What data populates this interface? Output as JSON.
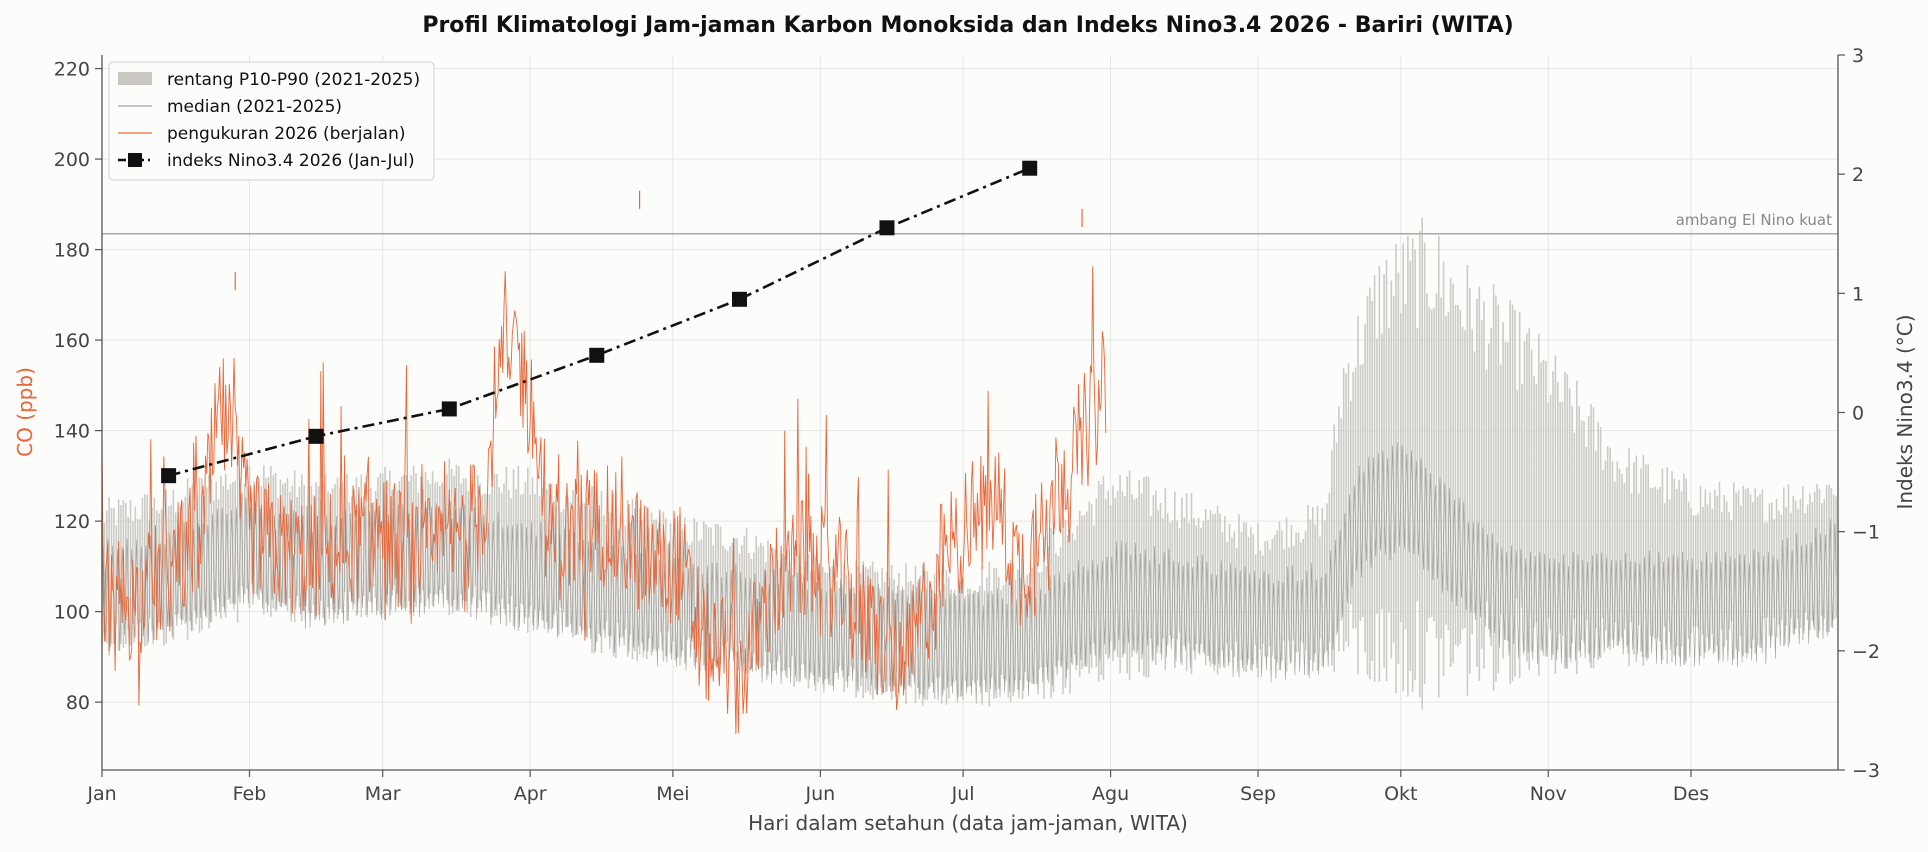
{
  "chart_data": {
    "type": "line",
    "title": "Profil Klimatologi Jam-jaman Karbon Monoksida dan Indeks Nino3.4 2026 - Bariri (WITA)",
    "xlabel": "Hari dalam setahun (data jam-jaman, WITA)",
    "ylabel_left": "CO (ppb)",
    "ylabel_right": "Indeks Nino3.4 (°C)",
    "ylim_left": [
      65,
      223
    ],
    "ylim_right": [
      -3,
      3
    ],
    "left_ticks": [
      80,
      100,
      120,
      140,
      160,
      180,
      200,
      220
    ],
    "right_ticks": [
      -3,
      -2,
      -1,
      0,
      1,
      2,
      3
    ],
    "right_tick_labels": [
      "−3",
      "−2",
      "−1",
      "0",
      "1",
      "2",
      "3"
    ],
    "month_labels": [
      "Jan",
      "Feb",
      "Mar",
      "Apr",
      "Mei",
      "Jun",
      "Jul",
      "Agu",
      "Sep",
      "Okt",
      "Nov",
      "Des"
    ],
    "grid": true,
    "legend_position": "top-left",
    "legend": [
      "rentang P10-P90 (2021-2025)",
      "median (2021-2025)",
      "pengukuran 2026 (berjalan)",
      "indeks Nino3.4 2026 (Jan-Jul)"
    ],
    "threshold": {
      "value": 1.5,
      "axis": "right",
      "label": "ambang El Nino kuat"
    },
    "band_p10_p90": {
      "doy": [
        1,
        15,
        32,
        46,
        60,
        74,
        91,
        105,
        121,
        135,
        152,
        166,
        182,
        196,
        213,
        227,
        244,
        258,
        262,
        270,
        280,
        288,
        300,
        312,
        320,
        335,
        350,
        365
      ],
      "low": [
        90,
        92,
        98,
        97,
        98,
        99,
        95,
        90,
        88,
        86,
        82,
        80,
        78,
        79,
        84,
        86,
        85,
        86,
        85,
        80,
        78,
        80,
        85,
        86,
        87,
        88,
        90,
        92
      ],
      "high": [
        125,
        128,
        135,
        130,
        132,
        134,
        132,
        128,
        122,
        120,
        112,
        111,
        110,
        114,
        133,
        128,
        120,
        125,
        160,
        182,
        188,
        178,
        166,
        150,
        138,
        130,
        128,
        132
      ]
    },
    "median_2021_2025": {
      "doy": [
        1,
        15,
        32,
        46,
        60,
        74,
        91,
        105,
        121,
        135,
        152,
        166,
        182,
        196,
        213,
        227,
        244,
        258,
        265,
        275,
        285,
        295,
        305,
        320,
        335,
        350,
        365
      ],
      "values": [
        103,
        106,
        114,
        108,
        111,
        112,
        108,
        104,
        100,
        98,
        95,
        94,
        92,
        93,
        103,
        101,
        97,
        98,
        120,
        126,
        114,
        104,
        100,
        102,
        100,
        101,
        108
      ]
    },
    "co_2026": {
      "doy": [
        1,
        8,
        15,
        22,
        26,
        32,
        39,
        46,
        53,
        60,
        67,
        74,
        81,
        84,
        88,
        92,
        95,
        105,
        112,
        118,
        122,
        127,
        133,
        135,
        142,
        149,
        156,
        163,
        170,
        177,
        182,
        189,
        194,
        200,
        207,
        212
      ],
      "values": [
        105,
        102,
        108,
        118,
        145,
        118,
        113,
        112,
        115,
        118,
        110,
        115,
        122,
        150,
        160,
        140,
        115,
        120,
        115,
        110,
        112,
        93,
        90,
        85,
        105,
        112,
        107,
        95,
        88,
        110,
        118,
        125,
        108,
        125,
        138,
        150
      ],
      "spikes": [
        {
          "doy": 29,
          "value": 175
        },
        {
          "doy": 114,
          "value": 193
        },
        {
          "doy": 207,
          "value": 189
        }
      ]
    },
    "nino34_2026": {
      "doy": [
        15,
        46,
        74,
        105,
        135,
        166,
        196
      ],
      "values": [
        -0.53,
        -0.2,
        0.03,
        0.48,
        0.95,
        1.55,
        2.05
      ]
    },
    "colors": {
      "band": "#c9c8c2",
      "median": "#8f8d87",
      "measurement": "#e8673a",
      "nino": "#111111",
      "threshold": "#a8a8a8",
      "co_axis_label": "#e8673a"
    }
  }
}
